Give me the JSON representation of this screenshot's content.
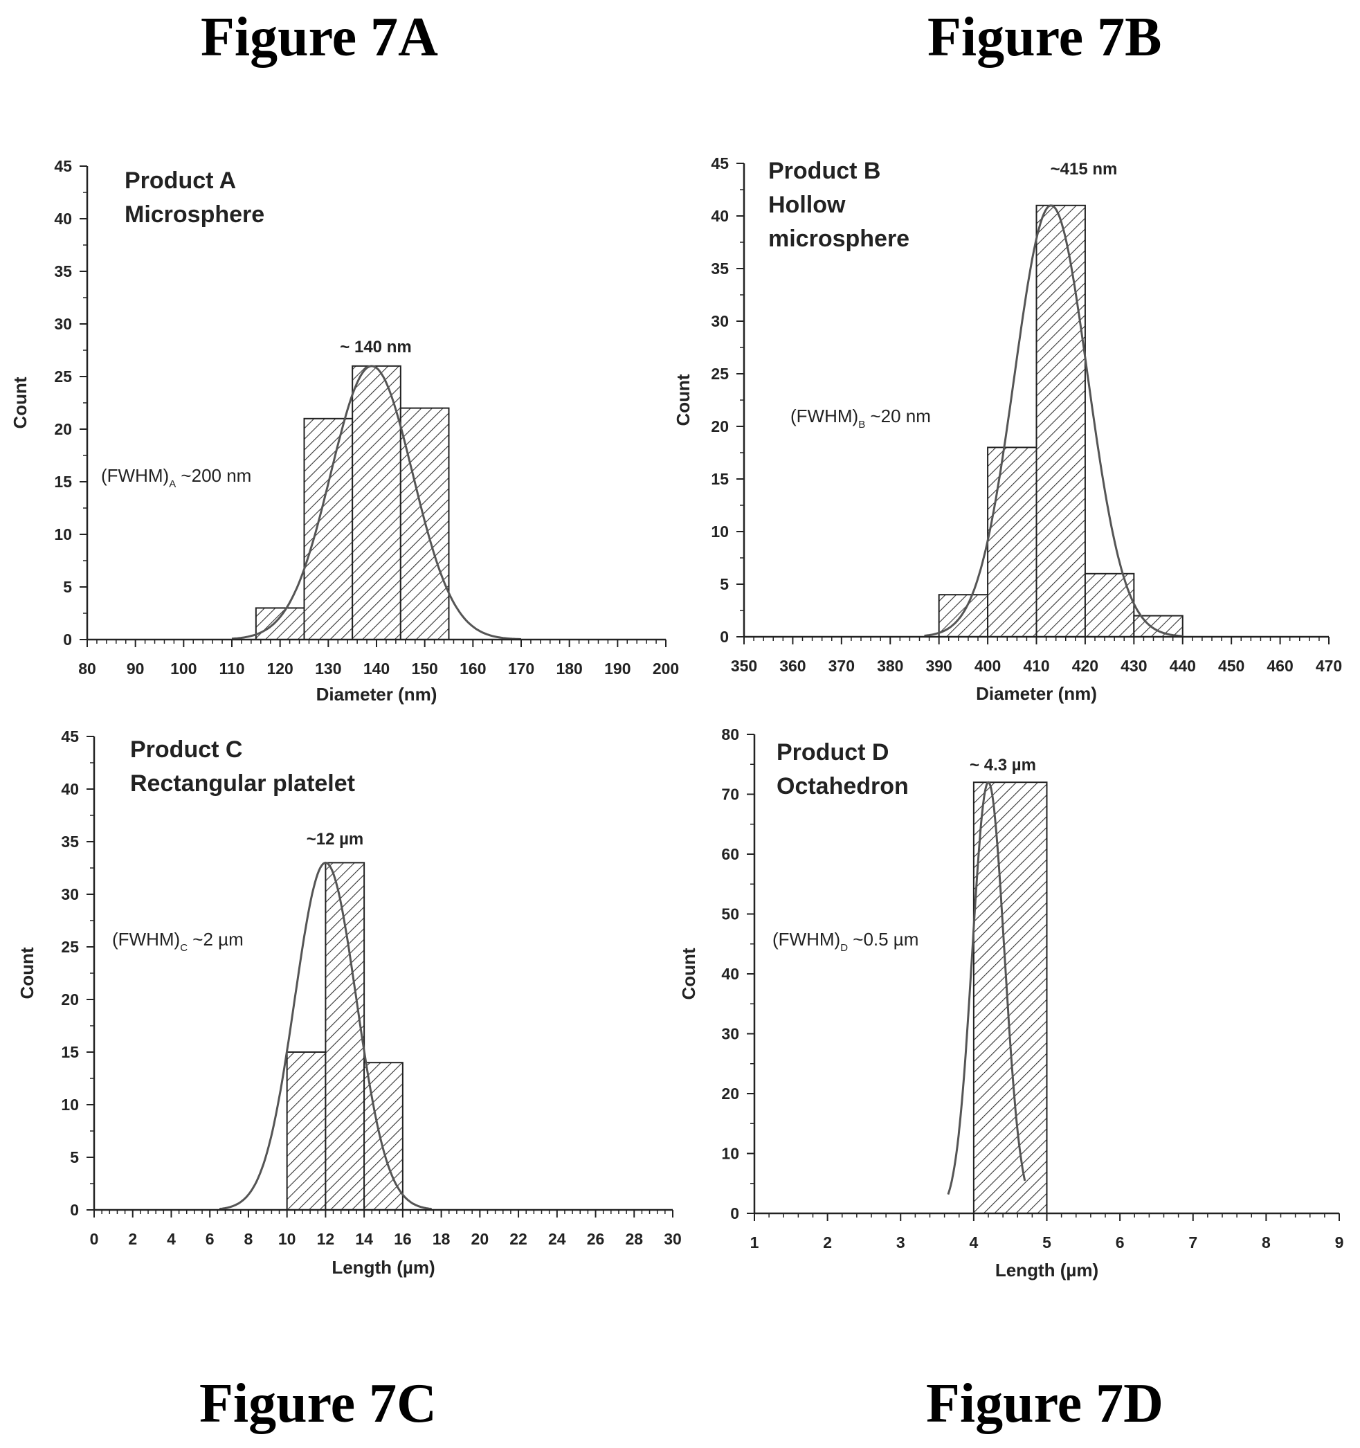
{
  "figure_titles": {
    "a": "Figure 7A",
    "b": "Figure 7B",
    "c": "Figure 7C",
    "d": "Figure 7D"
  },
  "colors": {
    "ink": "#222222",
    "bar_fill": "#ffffff",
    "hatch": "#333333",
    "curve": "#555555"
  },
  "chart_data": [
    {
      "type": "bar",
      "id": "a",
      "xlabel": "Diameter (nm)",
      "ylabel": "Count",
      "xlim": [
        80,
        200
      ],
      "ylim": [
        0,
        45
      ],
      "xticks": [
        80,
        90,
        100,
        110,
        120,
        130,
        140,
        150,
        160,
        170,
        180,
        190,
        200
      ],
      "yticks": [
        0,
        5,
        10,
        15,
        20,
        25,
        30,
        35,
        40,
        45
      ],
      "bins": [
        {
          "x0": 115,
          "x1": 125,
          "count": 3
        },
        {
          "x0": 125,
          "x1": 135,
          "count": 21
        },
        {
          "x0": 135,
          "x1": 145,
          "count": 26
        },
        {
          "x0": 145,
          "x1": 155,
          "count": 22
        }
      ],
      "fit": {
        "type": "gaussian",
        "center": 139,
        "amplitude": 26,
        "sigma": 8.5,
        "xrange": [
          110,
          170
        ]
      },
      "product_label": [
        "Product A",
        "Microsphere"
      ],
      "peak_label": "~ 140 nm",
      "fwhm": {
        "main": "(FWHM)",
        "sub": "A",
        "value": " ~200 nm"
      },
      "grid": false
    },
    {
      "type": "bar",
      "id": "b",
      "xlabel": "Diameter (nm)",
      "ylabel": "Count",
      "xlim": [
        350,
        470
      ],
      "ylim": [
        0,
        45
      ],
      "xticks": [
        350,
        360,
        370,
        380,
        390,
        400,
        410,
        420,
        430,
        440,
        450,
        460,
        470
      ],
      "yticks": [
        0,
        5,
        10,
        15,
        20,
        25,
        30,
        35,
        40,
        45
      ],
      "bins": [
        {
          "x0": 390,
          "x1": 400,
          "count": 4
        },
        {
          "x0": 400,
          "x1": 410,
          "count": 18
        },
        {
          "x0": 410,
          "x1": 420,
          "count": 41
        },
        {
          "x0": 420,
          "x1": 430,
          "count": 6
        },
        {
          "x0": 430,
          "x1": 440,
          "count": 2
        }
      ],
      "fit": {
        "type": "gaussian",
        "center": 413,
        "amplitude": 41,
        "sigma": 7.5,
        "xrange": [
          387,
          440
        ]
      },
      "product_label": [
        "Product B",
        "Hollow",
        "microsphere"
      ],
      "peak_label": "~415 nm",
      "fwhm": {
        "main": "(FWHM)",
        "sub": "B",
        "value": " ~20 nm"
      },
      "grid": false
    },
    {
      "type": "bar",
      "id": "c",
      "xlabel": "Length (µm)",
      "ylabel": "Count",
      "xlim": [
        0,
        30
      ],
      "ylim": [
        0,
        45
      ],
      "xticks": [
        0,
        2,
        4,
        6,
        8,
        10,
        12,
        14,
        16,
        18,
        20,
        22,
        24,
        26,
        28,
        30
      ],
      "yticks": [
        0,
        5,
        10,
        15,
        20,
        25,
        30,
        35,
        40,
        45
      ],
      "bins": [
        {
          "x0": 10,
          "x1": 12,
          "count": 15
        },
        {
          "x0": 12,
          "x1": 14,
          "count": 33
        },
        {
          "x0": 14,
          "x1": 16,
          "count": 14
        }
      ],
      "fit": {
        "type": "gaussian",
        "center": 12,
        "amplitude": 33,
        "sigma": 1.6,
        "xrange": [
          6.5,
          17.5
        ]
      },
      "product_label": [
        "Product C",
        "Rectangular platelet"
      ],
      "peak_label": "~12 µm",
      "fwhm": {
        "main": "(FWHM)",
        "sub": "C",
        "value": " ~2 µm"
      },
      "grid": false
    },
    {
      "type": "bar",
      "id": "d",
      "xlabel": "Length (µm)",
      "ylabel": "Count",
      "xlim": [
        1,
        9
      ],
      "ylim": [
        0,
        80
      ],
      "xticks": [
        1,
        2,
        3,
        4,
        5,
        6,
        7,
        8,
        9
      ],
      "yticks": [
        0,
        10,
        20,
        30,
        40,
        50,
        60,
        70,
        80
      ],
      "bins": [
        {
          "x0": 4,
          "x1": 5,
          "count": 72
        }
      ],
      "fit": {
        "type": "gaussian",
        "center": 4.2,
        "amplitude": 72,
        "sigma": 0.22,
        "xrange": [
          3.65,
          4.7
        ]
      },
      "product_label": [
        "Product D",
        "Octahedron"
      ],
      "peak_label": "~ 4.3 µm",
      "fwhm": {
        "main": "(FWHM)",
        "sub": "D",
        "value": " ~0.5 µm"
      },
      "grid": false
    }
  ]
}
